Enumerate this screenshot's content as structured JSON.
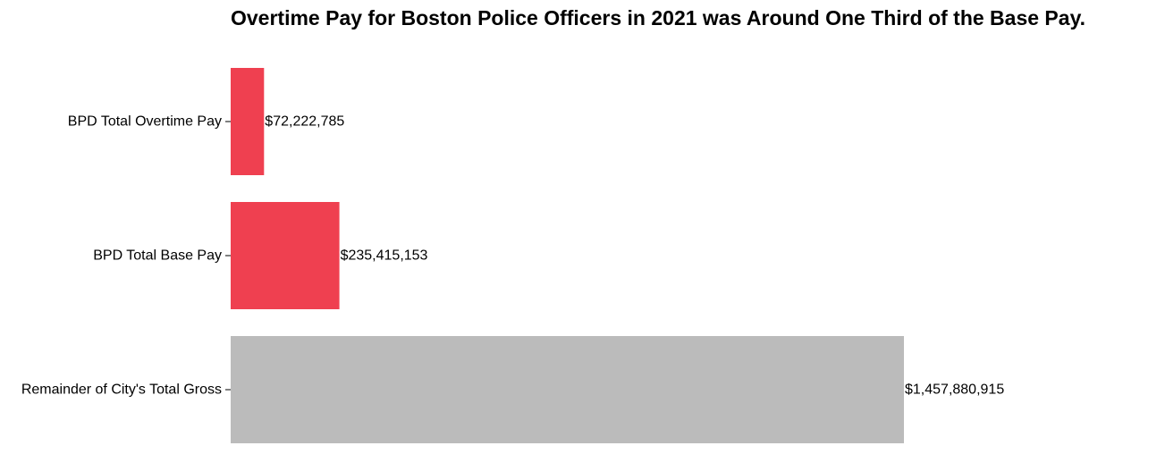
{
  "chart_data": {
    "type": "bar",
    "orientation": "horizontal",
    "title": "Overtime Pay for Boston Police Officers in 2021 was Around One Third of the Base Pay.",
    "xlabel": "",
    "ylabel": "",
    "categories": [
      "BPD Total Overtime Pay",
      "BPD Total Base Pay",
      "Remainder of City's Total Gross"
    ],
    "values": [
      72222785,
      235415153,
      1457880915
    ],
    "value_labels": [
      "$72,222,785",
      "$235,415,153",
      "$1,457,880,915"
    ],
    "bar_colors": [
      "#ef4050",
      "#ef4050",
      "#bbbbbb"
    ],
    "xlim": [
      0,
      1457880915
    ],
    "grid": false,
    "legend": "none"
  }
}
